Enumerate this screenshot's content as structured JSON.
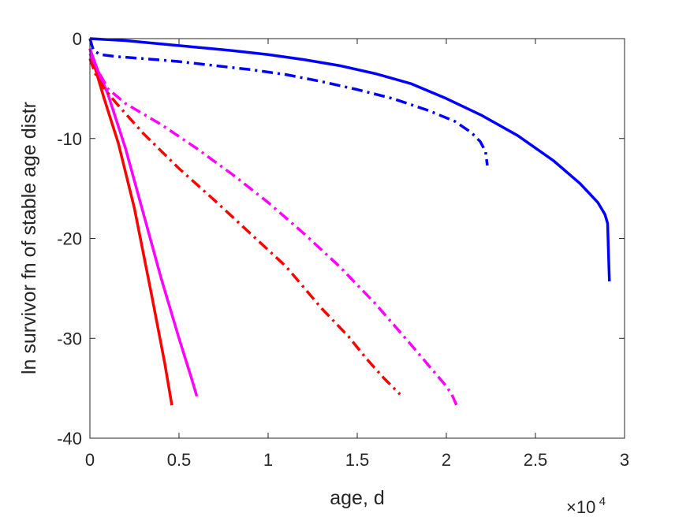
{
  "chart_data": {
    "type": "line",
    "title": "",
    "xlabel": "age, d",
    "ylabel": "ln survivor fn of stable age distr",
    "xlim": [
      0,
      30000
    ],
    "ylim": [
      -40,
      0
    ],
    "x_exponent_label": {
      "base": "×10",
      "exp": "4"
    },
    "x_ticks": [
      0,
      5000,
      10000,
      15000,
      20000,
      25000,
      30000
    ],
    "x_tick_labels": [
      "0",
      "0.5",
      "1",
      "1.5",
      "2",
      "2.5",
      "3"
    ],
    "y_ticks": [
      0,
      -10,
      -20,
      -30,
      -40
    ],
    "y_tick_labels": [
      "0",
      "-10",
      "-20",
      "-30",
      "-40"
    ],
    "grid": false,
    "box": true,
    "series": [
      {
        "color": "#0000ff",
        "style": "solid",
        "points": [
          [
            0,
            0
          ],
          [
            2000,
            -0.2
          ],
          [
            5000,
            -0.7
          ],
          [
            8000,
            -1.2
          ],
          [
            10000,
            -1.6
          ],
          [
            12000,
            -2.1
          ],
          [
            14000,
            -2.7
          ],
          [
            16000,
            -3.5
          ],
          [
            18000,
            -4.5
          ],
          [
            20000,
            -6.0
          ],
          [
            22000,
            -7.7
          ],
          [
            24000,
            -9.7
          ],
          [
            26000,
            -12.2
          ],
          [
            27500,
            -14.5
          ],
          [
            28500,
            -16.4
          ],
          [
            28900,
            -17.6
          ],
          [
            29050,
            -18.5
          ],
          [
            29100,
            -21.5
          ],
          [
            29150,
            -24.3
          ]
        ]
      },
      {
        "color": "#0000ff",
        "style": "dashdot",
        "points": [
          [
            0,
            0
          ],
          [
            200,
            -1.2
          ],
          [
            600,
            -1.6
          ],
          [
            1500,
            -1.8
          ],
          [
            3000,
            -2.0
          ],
          [
            5000,
            -2.3
          ],
          [
            7000,
            -2.7
          ],
          [
            9000,
            -3.1
          ],
          [
            11000,
            -3.6
          ],
          [
            13000,
            -4.3
          ],
          [
            15000,
            -5.1
          ],
          [
            17000,
            -6.0
          ],
          [
            19000,
            -7.2
          ],
          [
            20500,
            -8.3
          ],
          [
            21400,
            -9.4
          ],
          [
            21900,
            -10.3
          ],
          [
            22200,
            -11.3
          ],
          [
            22300,
            -12.7
          ]
        ]
      },
      {
        "color": "#ff0000",
        "style": "solid",
        "points": [
          [
            0,
            -1
          ],
          [
            300,
            -3.0
          ],
          [
            800,
            -6.0
          ],
          [
            1600,
            -10.5
          ],
          [
            2500,
            -17.0
          ],
          [
            3500,
            -26.0
          ],
          [
            4200,
            -32.5
          ],
          [
            4600,
            -36.7
          ]
        ]
      },
      {
        "color": "#ff00ff",
        "style": "solid",
        "points": [
          [
            0,
            -1
          ],
          [
            400,
            -3.0
          ],
          [
            1000,
            -5.5
          ],
          [
            2000,
            -11.0
          ],
          [
            3000,
            -17.5
          ],
          [
            4000,
            -24.0
          ],
          [
            5000,
            -30.0
          ],
          [
            5700,
            -34.0
          ],
          [
            6000,
            -35.8
          ]
        ]
      },
      {
        "color": "#ff0000",
        "style": "dashdot",
        "points": [
          [
            0,
            -2
          ],
          [
            300,
            -3.5
          ],
          [
            800,
            -5.0
          ],
          [
            1500,
            -6.5
          ],
          [
            3000,
            -9.5
          ],
          [
            5000,
            -13.0
          ],
          [
            7000,
            -16.2
          ],
          [
            9000,
            -19.5
          ],
          [
            11000,
            -22.8
          ],
          [
            13000,
            -27.0
          ],
          [
            14500,
            -29.8
          ],
          [
            15500,
            -32.0
          ],
          [
            16500,
            -34.0
          ],
          [
            17400,
            -35.6
          ]
        ]
      },
      {
        "color": "#ff00ff",
        "style": "dashdot",
        "points": [
          [
            0,
            -1.5
          ],
          [
            400,
            -3.0
          ],
          [
            1000,
            -5.0
          ],
          [
            2000,
            -6.5
          ],
          [
            4000,
            -8.6
          ],
          [
            6000,
            -11.0
          ],
          [
            8000,
            -13.6
          ],
          [
            10000,
            -16.4
          ],
          [
            12000,
            -19.5
          ],
          [
            14000,
            -22.8
          ],
          [
            16000,
            -26.5
          ],
          [
            18000,
            -30.6
          ],
          [
            20000,
            -34.8
          ],
          [
            20300,
            -35.6
          ],
          [
            20600,
            -36.8
          ]
        ]
      }
    ]
  }
}
